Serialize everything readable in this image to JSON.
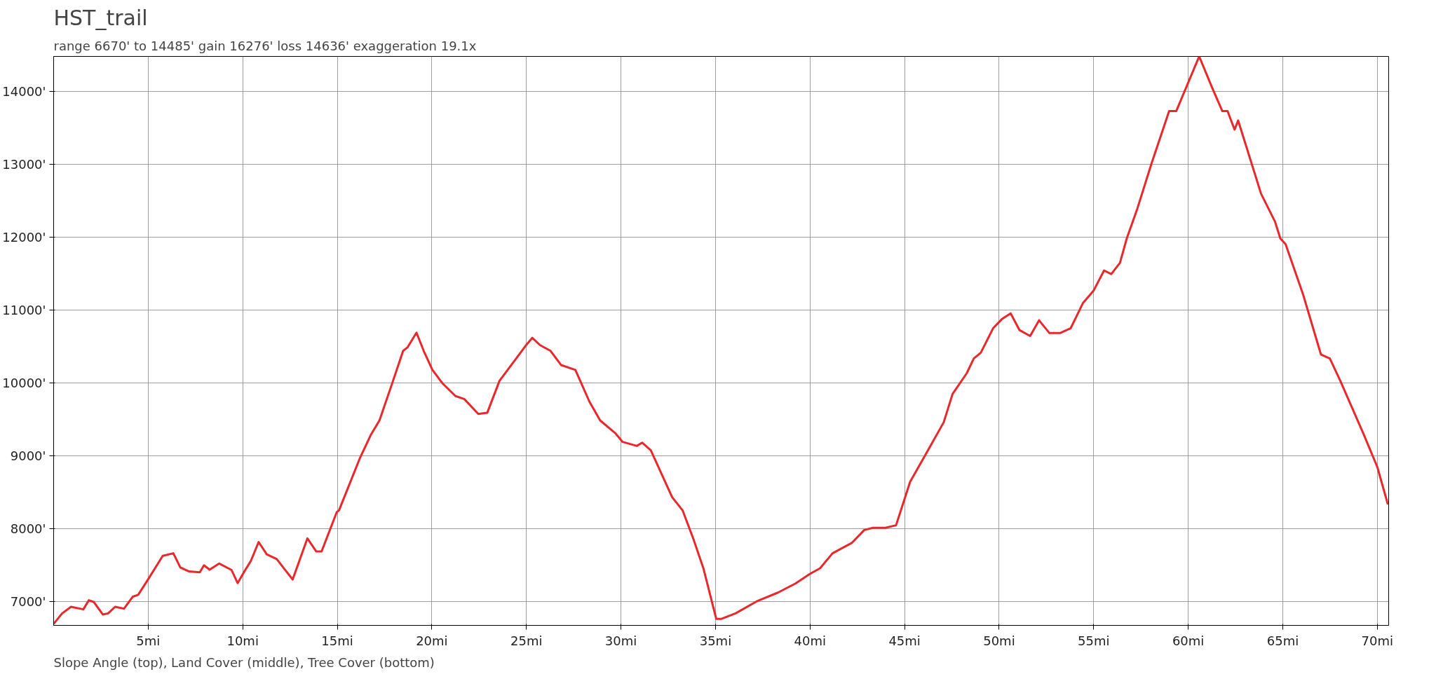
{
  "chart_data": {
    "type": "line",
    "title": "HST_trail",
    "subtitle": "range 6670' to 14485'  gain 16276'  loss 14636'  exaggeration 19.1x",
    "annotations": [
      "Slope Angle (top), Land Cover (middle), Tree Cover (bottom)"
    ],
    "x": [
      0,
      0.45,
      0.92,
      1.57,
      1.86,
      2.13,
      2.6,
      2.88,
      3.25,
      3.72,
      4.19,
      4.47,
      4.93,
      5.77,
      6.33,
      6.7,
      7.17,
      7.73,
      7.95,
      8.25,
      8.75,
      9.41,
      9.73,
      10.06,
      10.43,
      10.84,
      11.27,
      11.8,
      12.17,
      12.64,
      13.42,
      13.89,
      14.17,
      14.97,
      15.09,
      16.2,
      16.76,
      17.23,
      17.95,
      18.48,
      18.72,
      19.19,
      19.57,
      20.03,
      20.58,
      21.25,
      21.71,
      22.46,
      22.93,
      23.58,
      24.53,
      24.99,
      25.31,
      25.72,
      26.28,
      26.84,
      27.59,
      28.33,
      28.9,
      29.72,
      30.09,
      30.84,
      31.12,
      31.58,
      32.71,
      33.26,
      33.82,
      34.36,
      35.04,
      35.32,
      36.06,
      37.18,
      38.3,
      39.23,
      39.98,
      40.53,
      41.19,
      42.22,
      42.87,
      43.33,
      43.99,
      44.55,
      45.29,
      46.13,
      47.07,
      47.54,
      48.28,
      48.66,
      49.03,
      49.68,
      50.14,
      50.61,
      51.08,
      51.64,
      52.11,
      52.66,
      53.22,
      53.78,
      54.44,
      54.99,
      55.55,
      55.93,
      56.39,
      56.75,
      57.31,
      58.06,
      58.99,
      59.37,
      60.58,
      61.24,
      61.8,
      62.08,
      62.45,
      62.64,
      63.85,
      64.59,
      64.87,
      65.15,
      66.08,
      67.02,
      67.49,
      68.04,
      69.26,
      70.0,
      70.56
    ],
    "series": [
      {
        "color": "#e8282b",
        "values": [
          6690,
          6835,
          6925,
          6890,
          7015,
          6990,
          6820,
          6835,
          6925,
          6900,
          7065,
          7090,
          7275,
          7625,
          7660,
          7465,
          7410,
          7400,
          7495,
          7435,
          7520,
          7430,
          7250,
          7400,
          7555,
          7815,
          7645,
          7580,
          7455,
          7300,
          7865,
          7685,
          7685,
          8225,
          8250,
          8970,
          9280,
          9485,
          10030,
          10440,
          10490,
          10690,
          10440,
          10180,
          9990,
          9820,
          9780,
          9575,
          9590,
          10030,
          10360,
          10520,
          10620,
          10520,
          10440,
          10245,
          10180,
          9745,
          9485,
          9305,
          9190,
          9135,
          9180,
          9075,
          8430,
          8250,
          7865,
          7455,
          6760,
          6760,
          6835,
          7000,
          7120,
          7245,
          7375,
          7455,
          7660,
          7805,
          7980,
          8010,
          8010,
          8045,
          8640,
          9025,
          9460,
          9850,
          10130,
          10335,
          10415,
          10750,
          10875,
          10955,
          10725,
          10645,
          10860,
          10685,
          10685,
          10750,
          11100,
          11265,
          11545,
          11495,
          11650,
          11985,
          12395,
          13015,
          13735,
          13735,
          14485,
          14070,
          13735,
          13735,
          13480,
          13605,
          12600,
          12215,
          11985,
          11905,
          11210,
          10390,
          10335,
          10030,
          9305,
          8845,
          8330
        ]
      }
    ],
    "xlim": [
      0,
      70.6
    ],
    "ylim": [
      6670,
      14485
    ],
    "xticks": [
      {
        "value": 5,
        "label": "5mi"
      },
      {
        "value": 10,
        "label": "10mi"
      },
      {
        "value": 15,
        "label": "15mi"
      },
      {
        "value": 20,
        "label": "20mi"
      },
      {
        "value": 25,
        "label": "25mi"
      },
      {
        "value": 30,
        "label": "30mi"
      },
      {
        "value": 35,
        "label": "35mi"
      },
      {
        "value": 40,
        "label": "40mi"
      },
      {
        "value": 45,
        "label": "45mi"
      },
      {
        "value": 50,
        "label": "50mi"
      },
      {
        "value": 55,
        "label": "55mi"
      },
      {
        "value": 60,
        "label": "60mi"
      },
      {
        "value": 65,
        "label": "65mi"
      },
      {
        "value": 70,
        "label": "70mi"
      }
    ],
    "yticks": [
      {
        "value": 7000,
        "label": "7000'"
      },
      {
        "value": 8000,
        "label": "8000'"
      },
      {
        "value": 9000,
        "label": "9000'"
      },
      {
        "value": 10000,
        "label": "10000'"
      },
      {
        "value": 11000,
        "label": "11000'"
      },
      {
        "value": 12000,
        "label": "12000'"
      },
      {
        "value": 13000,
        "label": "13000'"
      },
      {
        "value": 14000,
        "label": "14000'"
      }
    ],
    "grid": true,
    "line_style": "solid"
  }
}
